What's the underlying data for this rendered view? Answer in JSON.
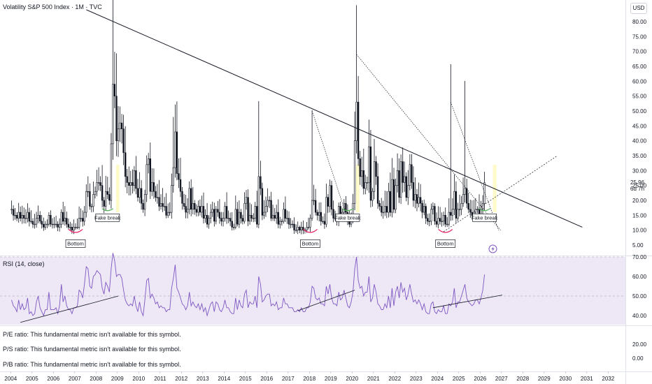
{
  "header": {
    "title": "Volatility S&P 500 Index · 1M · TVC",
    "currency": "USD"
  },
  "last_price": {
    "value": "25.96",
    "countdown": "6d 7h"
  },
  "rsi_panel": {
    "label": "RSI (14, close)"
  },
  "fundamentals": [
    {
      "label": "P/E ratio: This fundamental metric isn't available for this symbol."
    },
    {
      "label": "P/S ratio: This fundamental metric isn't available for this symbol."
    },
    {
      "label": "P/B ratio: This fundamental metric isn't available for this symbol."
    }
  ],
  "annotations": {
    "bottom_1": "Bottom",
    "bottom_2": "Bottom",
    "bottom_3": "Bottom",
    "fake_break_1": "Fake break",
    "fake_break_2": "Fake break",
    "fake_break_3": "Fake break"
  },
  "colors": {
    "candle": "#131722",
    "rsi_line": "#7e57c2",
    "rsi_band": "#ede7f6",
    "bottom_arc": "#e91e63",
    "break_arc": "#4caf50",
    "highlight": "#fff59d",
    "trendline": "#131722",
    "axis_text": "#131722"
  },
  "chart_data": [
    {
      "type": "candlestick",
      "title": "Volatility S&P 500 Index · 1M · TVC",
      "x_tick_labels": [
        "2004",
        "2005",
        "2006",
        "2007",
        "2008",
        "2009",
        "2010",
        "2011",
        "2012",
        "2013",
        "2014",
        "2015",
        "2016",
        "2017",
        "2018",
        "2019",
        "2020",
        "2021",
        "2022",
        "2023",
        "2024",
        "2025",
        "2026",
        "2027",
        "2028",
        "2029",
        "2030",
        "2031",
        "2032"
      ],
      "y_tick_labels": [
        "80.00",
        "75.00",
        "70.00",
        "65.00",
        "60.00",
        "55.00",
        "50.00",
        "45.00",
        "40.00",
        "35.00",
        "30.00",
        "25.00",
        "20.00",
        "15.00",
        "10.00",
        "5.00"
      ],
      "y_scale": "linear",
      "x_range": [
        2003.5,
        2033
      ],
      "approx_monthly_close_by_year": {
        "2004": [
          17,
          15,
          15,
          14,
          16,
          14,
          15,
          14,
          14,
          16,
          13,
          13
        ],
        "2005": [
          12,
          12,
          14,
          15,
          13,
          12,
          11,
          12,
          12,
          15,
          12,
          12
        ],
        "2006": [
          12,
          12,
          11,
          12,
          16,
          13,
          14,
          12,
          11,
          11,
          10,
          11
        ],
        "2007": [
          11,
          11,
          14,
          14,
          13,
          16,
          23,
          23,
          18,
          18,
          22,
          23
        ],
        "2008": [
          26,
          26,
          25,
          20,
          18,
          23,
          22,
          20,
          39,
          59,
          55,
          40
        ],
        "2009": [
          44,
          46,
          44,
          36,
          28,
          26,
          25,
          26,
          25,
          30,
          24,
          21
        ],
        "2010": [
          24,
          19,
          17,
          22,
          32,
          34,
          23,
          26,
          23,
          21,
          21,
          18
        ],
        "2011": [
          19,
          18,
          18,
          15,
          16,
          16,
          25,
          31,
          43,
          29,
          27,
          23
        ],
        "2012": [
          19,
          18,
          16,
          17,
          24,
          17,
          19,
          17,
          16,
          18,
          16,
          18
        ],
        "2013": [
          14,
          15,
          12,
          14,
          16,
          17,
          13,
          17,
          16,
          14,
          13,
          14
        ],
        "2014": [
          18,
          14,
          14,
          13,
          11,
          11,
          17,
          12,
          16,
          14,
          13,
          19
        ],
        "2015": [
          21,
          13,
          15,
          14,
          14,
          18,
          12,
          28,
          24,
          15,
          16,
          18
        ],
        "2016": [
          20,
          20,
          14,
          15,
          14,
          16,
          12,
          13,
          13,
          17,
          14,
          14
        ],
        "2017": [
          12,
          12,
          12,
          10,
          10,
          11,
          10,
          11,
          10,
          10,
          11,
          11
        ],
        "2018": [
          14,
          20,
          20,
          16,
          15,
          16,
          13,
          13,
          12,
          21,
          18,
          25
        ],
        "2019": [
          17,
          14,
          14,
          13,
          18,
          15,
          16,
          19,
          16,
          13,
          12,
          14
        ],
        "2020": [
          19,
          40,
          53,
          34,
          28,
          30,
          24,
          26,
          26,
          38,
          20,
          23
        ],
        "2021": [
          33,
          28,
          19,
          18,
          16,
          16,
          18,
          16,
          23,
          16,
          27,
          17
        ],
        "2022": [
          25,
          30,
          21,
          33,
          26,
          28,
          21,
          25,
          32,
          26,
          20,
          22
        ],
        "2023": [
          19,
          21,
          19,
          16,
          18,
          14,
          13,
          13,
          17,
          18,
          13,
          12
        ],
        "2024": [
          14,
          13,
          13,
          15,
          12,
          12,
          16,
          15,
          17,
          23,
          14,
          17
        ],
        "2025": [
          17,
          19,
          22,
          24,
          19,
          17,
          16,
          15,
          16,
          17,
          17,
          15
        ],
        "2026": [
          17,
          19,
          25.96
        ]
      },
      "last_close": 25.96,
      "approx_peak_highs": [
        {
          "date": "2008-10",
          "high": 89.5
        },
        {
          "date": "2020-03",
          "high": 85.5
        },
        {
          "date": "2024-08",
          "high": 65.7
        },
        {
          "date": "2025-04",
          "high": 60.1
        },
        {
          "date": "2018-02",
          "high": 50.3
        },
        {
          "date": "2015-08",
          "high": 53.3
        },
        {
          "date": "2011-08",
          "high": 48.0
        }
      ],
      "trendlines": [
        {
          "from": [
            "2007-07",
            84
          ],
          "to": [
            "2030-10",
            11
          ]
        },
        {
          "from": [
            "2020-03",
            69
          ],
          "to": [
            "2026-12",
            10
          ]
        },
        {
          "from": [
            "2018-02",
            50
          ],
          "to": [
            "2019-11",
            12
          ]
        },
        {
          "from": [
            "2024-08",
            53
          ],
          "to": [
            "2026-11",
            10
          ]
        },
        {
          "from": [
            "2024-04",
            9.5
          ],
          "to": [
            "2029-08",
            35
          ]
        }
      ],
      "annotations": [
        {
          "text": "Bottom",
          "date": "2007-01"
        },
        {
          "text": "Fake break",
          "date": "2008-07"
        },
        {
          "text": "Bottom",
          "date": "2018-01"
        },
        {
          "text": "Fake break",
          "date": "2019-10"
        },
        {
          "text": "Bottom",
          "date": "2024-05"
        },
        {
          "text": "Fake break",
          "date": "2026-03"
        }
      ]
    },
    {
      "type": "line",
      "title": "RSI (14, close)",
      "series": [
        {
          "name": "RSI (14, close)",
          "approx_values_by_year": {
            "2004": [
              48,
              45,
              44,
              42,
              48,
              43,
              46,
              43,
              44,
              49,
              41,
              42
            ],
            "2005": [
              40,
              41,
              47,
              50,
              44,
              42,
              40,
              43,
              43,
              52,
              43,
              43
            ],
            "2006": [
              43,
              44,
              41,
              45,
              56,
              47,
              50,
              45,
              43,
              43,
              41,
              44
            ],
            "2007": [
              44,
              45,
              53,
              52,
              49,
              56,
              65,
              64,
              55,
              54,
              60,
              61
            ],
            "2008": [
              63,
              62,
              61,
              54,
              51,
              57,
              55,
              52,
              64,
              72,
              68,
              60
            ],
            "2009": [
              61,
              61,
              59,
              53,
              48,
              46,
              45,
              46,
              45,
              50,
              45,
              42
            ],
            "2010": [
              47,
              42,
              40,
              48,
              58,
              59,
              49,
              51,
              49,
              46,
              47,
              44
            ],
            "2011": [
              45,
              44,
              44,
              42,
              43,
              43,
              54,
              59,
              66,
              54,
              52,
              49
            ],
            "2012": [
              46,
              45,
              43,
              45,
              52,
              45,
              47,
              45,
              44,
              46,
              43,
              46
            ],
            "2013": [
              42,
              44,
              40,
              43,
              46,
              47,
              42,
              47,
              46,
              43,
              42,
              44
            ],
            "2014": [
              48,
              44,
              44,
              42,
              41,
              41,
              49,
              43,
              48,
              45,
              44,
              51
            ],
            "2015": [
              53,
              44,
              47,
              46,
              46,
              50,
              44,
              60,
              56,
              47,
              48,
              50
            ],
            "2016": [
              51,
              51,
              45,
              46,
              45,
              47,
              43,
              44,
              44,
              49,
              46,
              46
            ],
            "2017": [
              44,
              44,
              44,
              42,
              42,
              43,
              42,
              44,
              42,
              42,
              44,
              44
            ],
            "2018": [
              47,
              55,
              54,
              49,
              48,
              49,
              46,
              46,
              45,
              55,
              51,
              56
            ],
            "2019": [
              49,
              46,
              46,
              45,
              52,
              48,
              49,
              53,
              49,
              45,
              44,
              47
            ],
            "2020": [
              52,
              64,
              70,
              58,
              54,
              55,
              50,
              52,
              52,
              60,
              47,
              49
            ],
            "2021": [
              56,
              52,
              46,
              45,
              43,
              43,
              46,
              44,
              50,
              44,
              54,
              45
            ],
            "2022": [
              52,
              55,
              49,
              57,
              52,
              54,
              48,
              51,
              56,
              51,
              47,
              48
            ],
            "2023": [
              46,
              48,
              46,
              43,
              46,
              42,
              41,
              41,
              46,
              47,
              42,
              41
            ],
            "2024": [
              43,
              42,
              42,
              45,
              41,
              41,
              46,
              45,
              47,
              54,
              44,
              47
            ],
            "2025": [
              47,
              50,
              53,
              56,
              49,
              47,
              46,
              45,
              46,
              48,
              48,
              46
            ],
            "2026": [
              49,
              53,
              61
            ]
          }
        }
      ],
      "y_tick_labels": [
        "70.00",
        "60.00",
        "50.00",
        "40.00"
      ],
      "ylim": [
        36,
        72
      ],
      "bands": {
        "upper": 70,
        "middle": 50,
        "lower": 30
      },
      "trendlines": [
        {
          "from": [
            "2004-06",
            36.5
          ],
          "to": [
            "2009-01",
            50
          ]
        },
        {
          "from": [
            "2017-06",
            42.5
          ],
          "to": [
            "2020-02",
            53
          ]
        },
        {
          "from": [
            "2023-10",
            44
          ],
          "to": [
            "2027-01",
            50.5
          ]
        }
      ]
    },
    {
      "type": "table",
      "title": "",
      "y_tick_labels": [
        "20.00",
        "0.00"
      ]
    }
  ]
}
